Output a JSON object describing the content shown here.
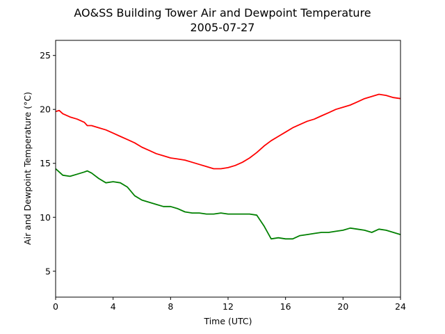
{
  "chart_data": {
    "type": "line",
    "title": "AO&SS Building Tower Air and Dewpoint Temperature",
    "subtitle": "2005-07-27",
    "xlabel": "Time (UTC)",
    "ylabel": "Air and Dewpoint Temperature (°C)",
    "xlim": [
      0,
      24
    ],
    "ylim": [
      2.6,
      26.4
    ],
    "xticks": [
      0,
      4,
      8,
      12,
      16,
      20,
      24
    ],
    "yticks": [
      5,
      10,
      15,
      20,
      25
    ],
    "grid": false,
    "legend": "none",
    "series": [
      {
        "color": "#ff0000",
        "x": [
          0,
          0.25,
          0.5,
          1,
          1.5,
          2,
          2.2,
          2.5,
          3,
          3.5,
          4,
          4.5,
          5,
          5.5,
          6,
          6.5,
          7,
          7.5,
          8,
          8.5,
          9,
          9.5,
          10,
          10.5,
          11,
          11.5,
          12,
          12.5,
          13,
          13.5,
          14,
          14.5,
          15,
          15.5,
          16,
          16.5,
          17,
          17.5,
          18,
          18.5,
          19,
          19.5,
          20,
          20.5,
          21,
          21.5,
          22,
          22.5,
          23,
          23.5,
          24
        ],
        "y": [
          19.8,
          19.9,
          19.6,
          19.3,
          19.1,
          18.8,
          18.5,
          18.5,
          18.3,
          18.1,
          17.8,
          17.5,
          17.2,
          16.9,
          16.5,
          16.2,
          15.9,
          15.7,
          15.5,
          15.4,
          15.3,
          15.1,
          14.9,
          14.7,
          14.5,
          14.5,
          14.6,
          14.8,
          15.1,
          15.5,
          16.0,
          16.6,
          17.1,
          17.5,
          17.9,
          18.3,
          18.6,
          18.9,
          19.1,
          19.4,
          19.7,
          20.0,
          20.2,
          20.4,
          20.7,
          21.0,
          21.2,
          21.4,
          21.3,
          21.1,
          21.0
        ]
      },
      {
        "color": "#008000",
        "x": [
          0,
          0.25,
          0.5,
          1,
          1.5,
          2,
          2.2,
          2.5,
          3,
          3.5,
          4,
          4.5,
          5,
          5.5,
          6,
          6.5,
          7,
          7.5,
          8,
          8.5,
          9,
          9.5,
          10,
          10.5,
          11,
          11.5,
          12,
          12.5,
          13,
          13.5,
          14,
          14.5,
          15,
          15.5,
          16,
          16.5,
          17,
          17.5,
          18,
          18.5,
          19,
          19.5,
          20,
          20.5,
          21,
          21.5,
          22,
          22.5,
          23,
          23.5,
          24
        ],
        "y": [
          14.5,
          14.2,
          13.9,
          13.8,
          14.0,
          14.2,
          14.3,
          14.1,
          13.6,
          13.2,
          13.3,
          13.2,
          12.8,
          12.0,
          11.6,
          11.4,
          11.2,
          11.0,
          11.0,
          10.8,
          10.5,
          10.4,
          10.4,
          10.3,
          10.3,
          10.4,
          10.3,
          10.3,
          10.3,
          10.3,
          10.2,
          9.2,
          8.0,
          8.1,
          8.0,
          8.0,
          8.3,
          8.4,
          8.5,
          8.6,
          8.6,
          8.7,
          8.8,
          9.0,
          8.9,
          8.8,
          8.6,
          8.9,
          8.8,
          8.6,
          8.4
        ]
      }
    ]
  }
}
